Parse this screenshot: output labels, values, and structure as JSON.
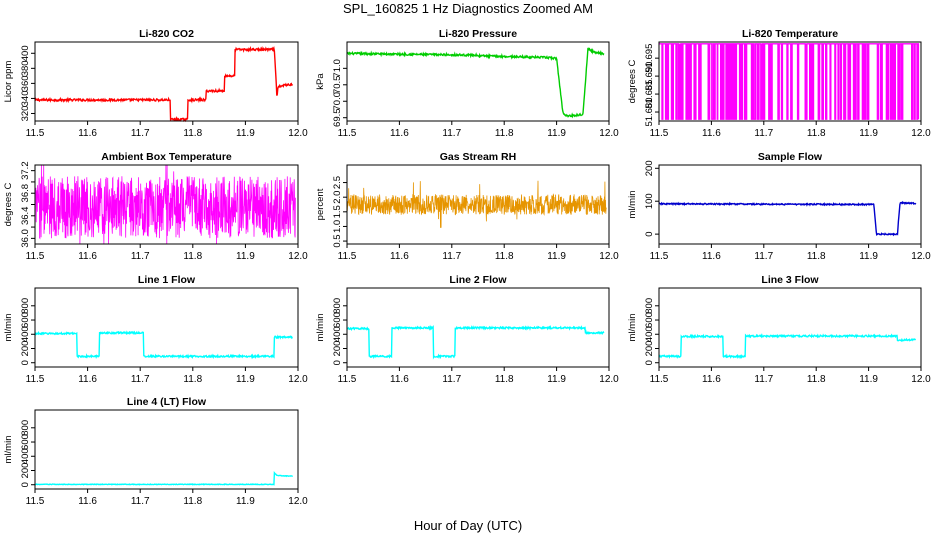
{
  "title": "SPL_160825  1 Hz Diagnostics Zoomed AM",
  "xlabel": "Hour of Day (UTC)",
  "chart_data": [
    {
      "name": "li820-co2",
      "type": "line",
      "title": "Li-820 CO2",
      "ylabel": "Licor ppm",
      "color": "#ff0000",
      "xlim": [
        11.5,
        12.0
      ],
      "ylim": [
        310,
        415
      ],
      "xticks": [
        11.5,
        11.6,
        11.7,
        11.8,
        11.9,
        12.0
      ],
      "xtick_labels": [
        "11.5",
        "11.6",
        "11.7",
        "11.8",
        "11.9",
        "12.0"
      ],
      "yticks": [
        320,
        340,
        360,
        380,
        400
      ],
      "ytick_labels": [
        "320",
        "340",
        "360",
        "380",
        "400"
      ],
      "x": [
        11.5,
        11.757,
        11.757,
        11.79,
        11.79,
        11.825,
        11.825,
        11.86,
        11.86,
        11.88,
        11.88,
        11.94,
        11.955,
        11.96,
        11.962,
        11.97,
        11.99
      ],
      "y": [
        338,
        338,
        312,
        312,
        338,
        338,
        350,
        350,
        370,
        370,
        405,
        405,
        405,
        340,
        355,
        357,
        359
      ],
      "noise": 1.5
    },
    {
      "name": "li820-pressure",
      "type": "line",
      "title": "Li-820 Pressure",
      "ylabel": "kPa",
      "color": "#00cc00",
      "xlim": [
        11.5,
        12.0
      ],
      "ylim": [
        69.4,
        71.8
      ],
      "xticks": [
        11.5,
        11.6,
        11.7,
        11.8,
        11.9,
        12.0
      ],
      "xtick_labels": [
        "11.5",
        "11.6",
        "11.7",
        "11.8",
        "11.9",
        "12.0"
      ],
      "yticks": [
        69.5,
        70.0,
        70.5,
        71.0
      ],
      "ytick_labels": [
        "69.5",
        "70.0",
        "70.5",
        "71.0"
      ],
      "x": [
        11.5,
        11.75,
        11.75,
        11.88,
        11.9,
        11.912,
        11.92,
        11.95,
        11.96,
        11.965,
        11.97,
        11.99
      ],
      "y": [
        71.45,
        71.4,
        71.38,
        71.33,
        71.3,
        69.65,
        69.55,
        69.6,
        71.6,
        71.55,
        71.5,
        71.45
      ],
      "noise": 0.03
    },
    {
      "name": "li820-temperature",
      "type": "spikes",
      "title": "Li-820 Temperature",
      "ylabel": "degrees C",
      "color": "#ff00ff",
      "xlim": [
        11.5,
        12.0
      ],
      "ylim": [
        51.6775,
        51.6995
      ],
      "xticks": [
        11.5,
        11.6,
        11.7,
        11.8,
        11.9,
        12.0
      ],
      "xtick_labels": [
        "11.5",
        "11.6",
        "11.7",
        "11.8",
        "11.9",
        "12.0"
      ],
      "yticks": [
        51.68,
        51.685,
        51.69,
        51.695
      ],
      "ytick_labels": [
        "51.680",
        "51.685",
        "51.690",
        "51.695"
      ],
      "low": 51.678,
      "high": 51.699,
      "n_spikes": 110
    },
    {
      "name": "ambient-box-temperature",
      "type": "noise",
      "title": "Ambient Box Temperature",
      "ylabel": "degrees C",
      "color": "#ff00ff",
      "xlim": [
        11.5,
        12.0
      ],
      "ylim": [
        35.9,
        37.3
      ],
      "xticks": [
        11.5,
        11.6,
        11.7,
        11.8,
        11.9,
        12.0
      ],
      "xtick_labels": [
        "11.5",
        "11.6",
        "11.7",
        "11.8",
        "11.9",
        "12.0"
      ],
      "yticks": [
        36.0,
        36.2,
        36.4,
        36.6,
        36.8,
        37.0,
        37.2
      ],
      "ytick_labels": [
        "36.0",
        "",
        "36.4",
        "",
        "36.8",
        "",
        "37.2"
      ],
      "center": 36.55,
      "amp": 0.55,
      "n": 900
    },
    {
      "name": "gas-stream-rh",
      "type": "noise",
      "title": "Gas Stream RH",
      "ylabel": "percent",
      "color": "#e69500",
      "xlim": [
        11.5,
        12.0
      ],
      "ylim": [
        0.4,
        3.1
      ],
      "xticks": [
        11.5,
        11.6,
        11.7,
        11.8,
        11.9,
        12.0
      ],
      "xtick_labels": [
        "11.5",
        "11.6",
        "11.7",
        "11.8",
        "11.9",
        "12.0"
      ],
      "yticks": [
        0.5,
        1.0,
        1.5,
        2.0,
        2.5
      ],
      "ytick_labels": [
        "0.5",
        "1.0",
        "1.5",
        "2.0",
        "2.5"
      ],
      "center": 1.75,
      "amp": 0.35,
      "n": 900
    },
    {
      "name": "sample-flow",
      "type": "line",
      "title": "Sample Flow",
      "ylabel": "ml/min",
      "color": "#0000cc",
      "xlim": [
        11.5,
        12.0
      ],
      "ylim": [
        -30,
        210
      ],
      "xticks": [
        11.5,
        11.6,
        11.7,
        11.8,
        11.9,
        12.0
      ],
      "xtick_labels": [
        "11.5",
        "11.6",
        "11.7",
        "11.8",
        "11.9",
        "12.0"
      ],
      "yticks": [
        0,
        100,
        200
      ],
      "ytick_labels": [
        "0",
        "100",
        "200"
      ],
      "x": [
        11.5,
        11.91,
        11.915,
        11.955,
        11.96,
        11.99
      ],
      "y": [
        92,
        90,
        0,
        0,
        95,
        93
      ],
      "noise": 2
    },
    {
      "name": "line1-flow",
      "type": "line",
      "title": "Line 1 Flow",
      "ylabel": "ml/min",
      "color": "#00ffff",
      "xlim": [
        11.5,
        12.0
      ],
      "ylim": [
        -60,
        1050
      ],
      "xticks": [
        11.5,
        11.6,
        11.7,
        11.8,
        11.9,
        12.0
      ],
      "xtick_labels": [
        "11.5",
        "11.6",
        "11.7",
        "11.8",
        "11.9",
        "12.0"
      ],
      "yticks": [
        0,
        200,
        400,
        600,
        800
      ],
      "ytick_labels": [
        "0",
        "200",
        "400",
        "600",
        "800"
      ],
      "x": [
        11.5,
        11.58,
        11.58,
        11.622,
        11.622,
        11.706,
        11.706,
        11.955,
        11.955,
        11.99
      ],
      "y": [
        410,
        410,
        90,
        90,
        420,
        420,
        90,
        90,
        360,
        360
      ],
      "noise": 12
    },
    {
      "name": "line2-flow",
      "type": "line",
      "title": "Line 2 Flow",
      "ylabel": "ml/min",
      "color": "#00ffff",
      "xlim": [
        11.5,
        12.0
      ],
      "ylim": [
        -60,
        1050
      ],
      "xticks": [
        11.5,
        11.6,
        11.7,
        11.8,
        11.9,
        12.0
      ],
      "xtick_labels": [
        "11.5",
        "11.6",
        "11.7",
        "11.8",
        "11.9",
        "12.0"
      ],
      "yticks": [
        0,
        200,
        400,
        600,
        800
      ],
      "ytick_labels": [
        "0",
        "200",
        "400",
        "600",
        "800"
      ],
      "x": [
        11.5,
        11.542,
        11.542,
        11.585,
        11.585,
        11.665,
        11.665,
        11.706,
        11.706,
        11.955,
        11.955,
        11.99
      ],
      "y": [
        480,
        480,
        90,
        90,
        490,
        490,
        90,
        90,
        490,
        490,
        420,
        420
      ],
      "noise": 12
    },
    {
      "name": "line3-flow",
      "type": "line",
      "title": "Line 3 Flow",
      "ylabel": "ml/min",
      "color": "#00ffff",
      "xlim": [
        11.5,
        12.0
      ],
      "ylim": [
        -60,
        1050
      ],
      "xticks": [
        11.5,
        11.6,
        11.7,
        11.8,
        11.9,
        12.0
      ],
      "xtick_labels": [
        "11.5",
        "11.6",
        "11.7",
        "11.8",
        "11.9",
        "12.0"
      ],
      "yticks": [
        0,
        200,
        400,
        600,
        800
      ],
      "ytick_labels": [
        "0",
        "200",
        "400",
        "600",
        "800"
      ],
      "x": [
        11.5,
        11.542,
        11.542,
        11.622,
        11.622,
        11.665,
        11.665,
        11.955,
        11.955,
        11.99
      ],
      "y": [
        90,
        90,
        370,
        370,
        90,
        90,
        375,
        375,
        320,
        320
      ],
      "noise": 12
    },
    {
      "name": "line4-lt-flow",
      "type": "line",
      "title": "Line 4 (LT) Flow",
      "ylabel": "ml/min",
      "color": "#00ffff",
      "xlim": [
        11.5,
        12.0
      ],
      "ylim": [
        -60,
        1050
      ],
      "xticks": [
        11.5,
        11.6,
        11.7,
        11.8,
        11.9,
        12.0
      ],
      "xtick_labels": [
        "11.5",
        "11.6",
        "11.7",
        "11.8",
        "11.9",
        "12.0"
      ],
      "yticks": [
        0,
        200,
        400,
        600,
        800
      ],
      "ytick_labels": [
        "0",
        "200",
        "400",
        "600",
        "800"
      ],
      "x": [
        11.5,
        11.955,
        11.955,
        11.96,
        11.99
      ],
      "y": [
        5,
        5,
        170,
        130,
        120
      ],
      "noise": 4
    }
  ]
}
